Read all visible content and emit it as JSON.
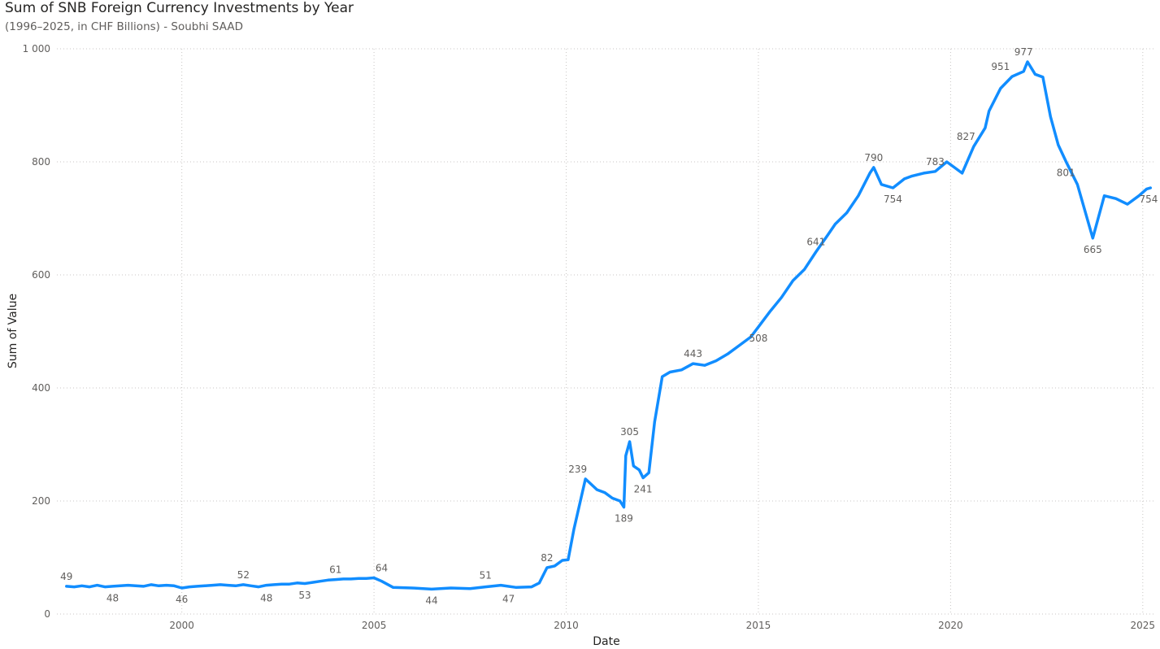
{
  "chart_data": {
    "type": "line",
    "title": "Sum of SNB Foreign Currency Investments by Year",
    "subtitle": "(1996–2025, in CHF Billions) - Soubhi SAAD",
    "xlabel": "Date",
    "ylabel": "Sum of Value",
    "xlim": [
      1996.75,
      2025.3
    ],
    "ylim": [
      0,
      1000
    ],
    "x_ticks": [
      2000,
      2005,
      2010,
      2015,
      2020,
      2025
    ],
    "y_ticks": [
      0,
      200,
      400,
      600,
      800,
      1000
    ],
    "y_tick_labels": [
      "0",
      "200",
      "400",
      "600",
      "800",
      "1 000"
    ],
    "grid": true,
    "line_color": "#118DFF",
    "series": [
      {
        "x": [
          1997.0,
          1997.2,
          1997.4,
          1997.6,
          1997.8,
          1998.0,
          1998.2,
          1998.4,
          1998.6,
          1998.8,
          1999.0,
          1999.2,
          1999.4,
          1999.6,
          1999.8,
          2000.0,
          2000.2,
          2000.4,
          2000.6,
          2000.8,
          2001.0,
          2001.2,
          2001.4,
          2001.6,
          2001.8,
          2002.0,
          2002.2,
          2002.4,
          2002.6,
          2002.8,
          2003.0,
          2003.2,
          2003.4,
          2003.6,
          2003.8,
          2004.0,
          2004.2,
          2004.4,
          2004.6,
          2004.8,
          2005.0,
          2005.2,
          2005.5,
          2006.0,
          2006.5,
          2007.0,
          2007.5,
          2007.9,
          2008.3,
          2008.7,
          2009.1,
          2009.3,
          2009.5,
          2009.7,
          2009.9,
          2010.05,
          2010.2,
          2010.5,
          2010.8,
          2011.0,
          2011.2,
          2011.4,
          2011.5,
          2011.55,
          2011.65,
          2011.75,
          2011.9,
          2012.0,
          2012.15,
          2012.3,
          2012.5,
          2012.7,
          2013.0,
          2013.3,
          2013.6,
          2013.9,
          2014.2,
          2014.5,
          2014.8,
          2015.0,
          2015.3,
          2015.6,
          2015.9,
          2016.2,
          2016.5,
          2016.8,
          2017.0,
          2017.3,
          2017.6,
          2017.9,
          2018.0,
          2018.2,
          2018.5,
          2018.8,
          2019.0,
          2019.3,
          2019.6,
          2019.9,
          2020.1,
          2020.3,
          2020.6,
          2020.9,
          2021.0,
          2021.3,
          2021.6,
          2021.9,
          2022.0,
          2022.2,
          2022.4,
          2022.6,
          2022.8,
          2023.0,
          2023.3,
          2023.7,
          2024.0,
          2024.3,
          2024.6,
          2024.9,
          2025.1,
          2025.2
        ],
        "y": [
          49,
          48,
          50,
          48,
          51,
          48,
          49,
          50,
          51,
          50,
          49,
          52,
          50,
          51,
          50,
          46,
          48,
          49,
          50,
          51,
          52,
          51,
          50,
          52,
          50,
          48,
          51,
          52,
          53,
          53,
          55,
          54,
          56,
          58,
          60,
          61,
          62,
          62,
          63,
          63,
          64,
          58,
          47,
          46,
          44,
          46,
          45,
          48,
          51,
          47,
          48,
          55,
          82,
          85,
          95,
          96,
          150,
          239,
          220,
          215,
          205,
          200,
          189,
          280,
          305,
          262,
          255,
          241,
          250,
          340,
          420,
          428,
          432,
          443,
          440,
          448,
          460,
          475,
          490,
          508,
          535,
          560,
          590,
          610,
          641,
          670,
          690,
          710,
          740,
          780,
          790,
          760,
          754,
          770,
          775,
          780,
          783,
          800,
          790,
          780,
          827,
          860,
          890,
          930,
          951,
          960,
          977,
          955,
          950,
          880,
          830,
          801,
          760,
          665,
          740,
          735,
          725,
          740,
          752,
          754
        ]
      }
    ],
    "data_labels": [
      {
        "x": 1997.0,
        "y": 49,
        "text": "49",
        "pos": "above"
      },
      {
        "x": 1998.2,
        "y": 48,
        "text": "48",
        "pos": "below"
      },
      {
        "x": 2000.0,
        "y": 46,
        "text": "46",
        "pos": "below"
      },
      {
        "x": 2001.6,
        "y": 52,
        "text": "52",
        "pos": "above"
      },
      {
        "x": 2002.2,
        "y": 48,
        "text": "48",
        "pos": "below"
      },
      {
        "x": 2003.2,
        "y": 53,
        "text": "53",
        "pos": "below"
      },
      {
        "x": 2004.0,
        "y": 61,
        "text": "61",
        "pos": "above"
      },
      {
        "x": 2005.2,
        "y": 64,
        "text": "64",
        "pos": "above"
      },
      {
        "x": 2006.5,
        "y": 44,
        "text": "44",
        "pos": "below"
      },
      {
        "x": 2007.9,
        "y": 51,
        "text": "51",
        "pos": "above"
      },
      {
        "x": 2008.5,
        "y": 47,
        "text": "47",
        "pos": "below"
      },
      {
        "x": 2009.5,
        "y": 82,
        "text": "82",
        "pos": "above"
      },
      {
        "x": 2010.3,
        "y": 239,
        "text": "239",
        "pos": "above"
      },
      {
        "x": 2011.5,
        "y": 189,
        "text": "189",
        "pos": "below"
      },
      {
        "x": 2011.65,
        "y": 305,
        "text": "305",
        "pos": "above"
      },
      {
        "x": 2012.0,
        "y": 241,
        "text": "241",
        "pos": "below"
      },
      {
        "x": 2013.3,
        "y": 443,
        "text": "443",
        "pos": "above"
      },
      {
        "x": 2015.0,
        "y": 508,
        "text": "508",
        "pos": "below"
      },
      {
        "x": 2016.5,
        "y": 641,
        "text": "641",
        "pos": "above"
      },
      {
        "x": 2018.0,
        "y": 790,
        "text": "790",
        "pos": "above"
      },
      {
        "x": 2018.5,
        "y": 754,
        "text": "754",
        "pos": "below"
      },
      {
        "x": 2019.6,
        "y": 783,
        "text": "783",
        "pos": "above"
      },
      {
        "x": 2020.4,
        "y": 827,
        "text": "827",
        "pos": "above"
      },
      {
        "x": 2021.3,
        "y": 951,
        "text": "951",
        "pos": "above"
      },
      {
        "x": 2021.9,
        "y": 977,
        "text": "977",
        "pos": "above"
      },
      {
        "x": 2023.0,
        "y": 801,
        "text": "801",
        "pos": "below"
      },
      {
        "x": 2023.7,
        "y": 665,
        "text": "665",
        "pos": "below"
      },
      {
        "x": 2025.15,
        "y": 754,
        "text": "754",
        "pos": "below"
      }
    ]
  }
}
